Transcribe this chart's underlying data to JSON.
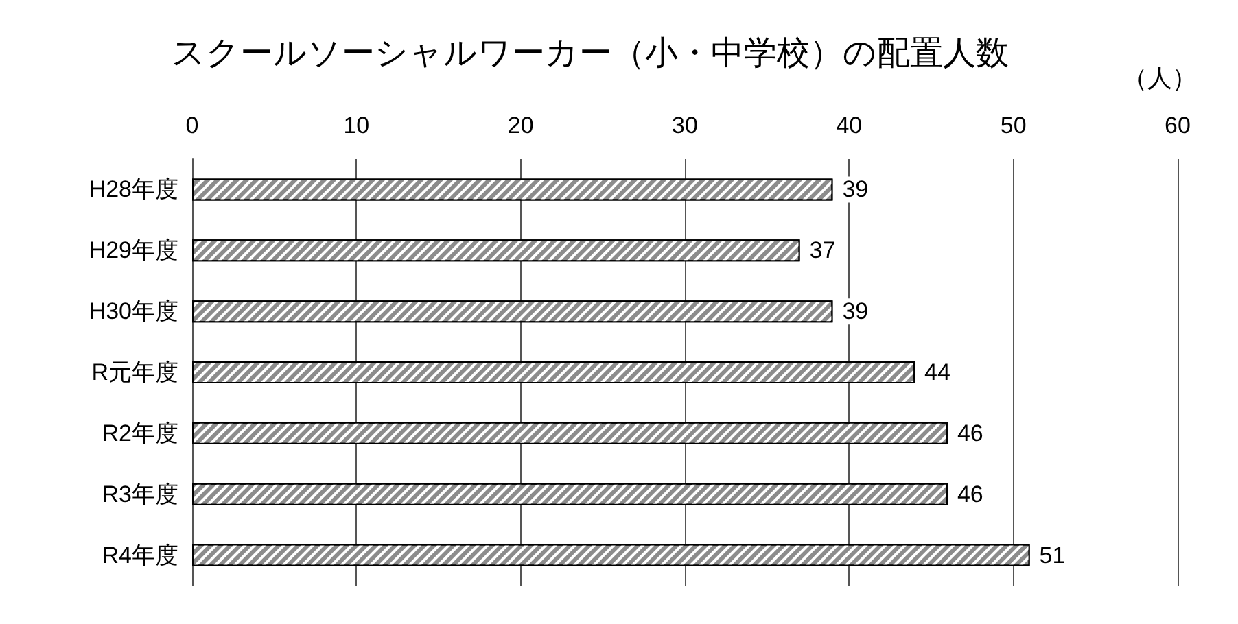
{
  "chart_data": {
    "type": "bar",
    "orientation": "horizontal",
    "title": "スクールソーシャルワーカー（小・中学校）の配置人数",
    "xlabel": "（人）",
    "categories": [
      "H28年度",
      "H29年度",
      "H30年度",
      "R元年度",
      "R2年度",
      "R3年度",
      "R4年度"
    ],
    "values": [
      39,
      37,
      39,
      44,
      46,
      46,
      51
    ],
    "color": "#8c8c8c",
    "xlim": [
      0,
      60
    ],
    "xticks": [
      0,
      10,
      20,
      30,
      40,
      50,
      60
    ],
    "grid": "x",
    "data_labels": true
  }
}
